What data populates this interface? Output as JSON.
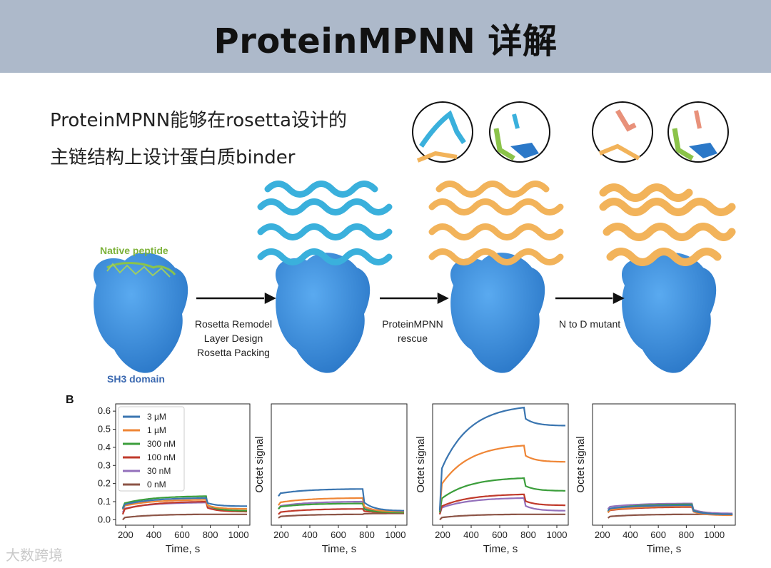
{
  "title": "ProteinMPNN 详解",
  "intro": {
    "line1": "ProteinMPNN能够在rosetta设计的",
    "line2": "主链结构上设计蛋白质binder"
  },
  "figure": {
    "native_peptide_label": "Native peptide",
    "sh3_label": "SH3 domain",
    "step1": [
      "Rosetta Remodel",
      "Layer Design",
      "Rosetta Packing"
    ],
    "step2": [
      "ProteinMPNN",
      "rescue"
    ],
    "step3": "N to D mutant",
    "panel_label": "B"
  },
  "watermark": "大数跨境",
  "chart_data": [
    {
      "type": "line",
      "xlabel": "Time, s",
      "ylabel": "",
      "xlim": [
        130,
        1080
      ],
      "ylim": [
        -0.03,
        0.64
      ],
      "xticks": [
        200,
        400,
        600,
        800,
        1000
      ],
      "yticks": [
        0.0,
        0.1,
        0.2,
        0.3,
        0.4,
        0.5,
        0.6
      ],
      "legend": "top-left",
      "assoc": [
        180,
        770
      ],
      "end": 1060,
      "series": [
        {
          "name": "3 µM",
          "color": "#3a75b0",
          "start": 0.06,
          "assoc_end": 0.12,
          "diss_end": 0.075
        },
        {
          "name": "1 µM",
          "color": "#ef8636",
          "start": 0.055,
          "assoc_end": 0.11,
          "diss_end": 0.06
        },
        {
          "name": "300 nM",
          "color": "#3b9e3b",
          "start": 0.065,
          "assoc_end": 0.13,
          "diss_end": 0.05
        },
        {
          "name": "100 nM",
          "color": "#c03a2b",
          "start": 0.03,
          "assoc_end": 0.1,
          "diss_end": 0.045
        },
        {
          "name": "30 nM",
          "color": "#9370bb",
          "start": 0.04,
          "assoc_end": 0.095,
          "diss_end": 0.05
        },
        {
          "name": "0 nM",
          "color": "#8c5446",
          "start": 0.0,
          "assoc_end": 0.03,
          "diss_end": 0.03
        }
      ]
    },
    {
      "type": "line",
      "xlabel": "Time, s",
      "ylabel": "Octet signal",
      "xlim": [
        130,
        1080
      ],
      "ylim": [
        -0.03,
        0.64
      ],
      "xticks": [
        200,
        400,
        600,
        800,
        1000
      ],
      "yticks": [],
      "assoc": [
        180,
        770
      ],
      "end": 1060,
      "series": [
        {
          "name": "3 µM",
          "color": "#3a75b0",
          "start": 0.13,
          "assoc_end": 0.17,
          "diss_end": 0.05
        },
        {
          "name": "1 µM",
          "color": "#ef8636",
          "start": 0.08,
          "assoc_end": 0.12,
          "diss_end": 0.045
        },
        {
          "name": "300 nM",
          "color": "#3b9e3b",
          "start": 0.06,
          "assoc_end": 0.09,
          "diss_end": 0.04
        },
        {
          "name": "100 nM",
          "color": "#c03a2b",
          "start": 0.03,
          "assoc_end": 0.06,
          "diss_end": 0.04
        },
        {
          "name": "30 nM",
          "color": "#9370bb",
          "start": 0.06,
          "assoc_end": 0.1,
          "diss_end": 0.045
        },
        {
          "name": "0 nM",
          "color": "#8c5446",
          "start": 0.01,
          "assoc_end": 0.03,
          "diss_end": 0.035
        }
      ]
    },
    {
      "type": "line",
      "xlabel": "Time, s",
      "ylabel": "Octet signal",
      "xlim": [
        130,
        1080
      ],
      "ylim": [
        -0.03,
        0.64
      ],
      "xticks": [
        200,
        400,
        600,
        800,
        1000
      ],
      "yticks": [],
      "assoc": [
        180,
        770
      ],
      "end": 1060,
      "series": [
        {
          "name": "3 µM",
          "color": "#3a75b0",
          "start": 0.05,
          "assoc_end": 0.62,
          "diss_end": 0.52
        },
        {
          "name": "1 µM",
          "color": "#ef8636",
          "start": 0.05,
          "assoc_end": 0.41,
          "diss_end": 0.32
        },
        {
          "name": "300 nM",
          "color": "#3b9e3b",
          "start": 0.04,
          "assoc_end": 0.23,
          "diss_end": 0.16
        },
        {
          "name": "100 nM",
          "color": "#c03a2b",
          "start": 0.03,
          "assoc_end": 0.14,
          "diss_end": 0.08
        },
        {
          "name": "30 nM",
          "color": "#9370bb",
          "start": 0.03,
          "assoc_end": 0.12,
          "diss_end": 0.05
        },
        {
          "name": "0 nM",
          "color": "#8c5446",
          "start": 0.0,
          "assoc_end": 0.03,
          "diss_end": 0.03
        }
      ]
    },
    {
      "type": "line",
      "xlabel": "Time, s",
      "ylabel": "Octet signal",
      "xlim": [
        130,
        1150
      ],
      "ylim": [
        -0.03,
        0.64
      ],
      "xticks": [
        200,
        400,
        600,
        800,
        1000
      ],
      "yticks": [],
      "assoc": [
        240,
        840
      ],
      "end": 1130,
      "series": [
        {
          "name": "3 µM",
          "color": "#3a75b0",
          "start": 0.05,
          "assoc_end": 0.08,
          "diss_end": 0.03
        },
        {
          "name": "1 µM",
          "color": "#ef8636",
          "start": 0.04,
          "assoc_end": 0.075,
          "diss_end": 0.025
        },
        {
          "name": "300 nM",
          "color": "#3b9e3b",
          "start": 0.045,
          "assoc_end": 0.085,
          "diss_end": 0.03
        },
        {
          "name": "100 nM",
          "color": "#c03a2b",
          "start": 0.04,
          "assoc_end": 0.07,
          "diss_end": 0.03
        },
        {
          "name": "30 nM",
          "color": "#9370bb",
          "start": 0.06,
          "assoc_end": 0.09,
          "diss_end": 0.035
        },
        {
          "name": "0 nM",
          "color": "#8c5446",
          "start": 0.01,
          "assoc_end": 0.03,
          "diss_end": 0.03
        }
      ]
    }
  ]
}
